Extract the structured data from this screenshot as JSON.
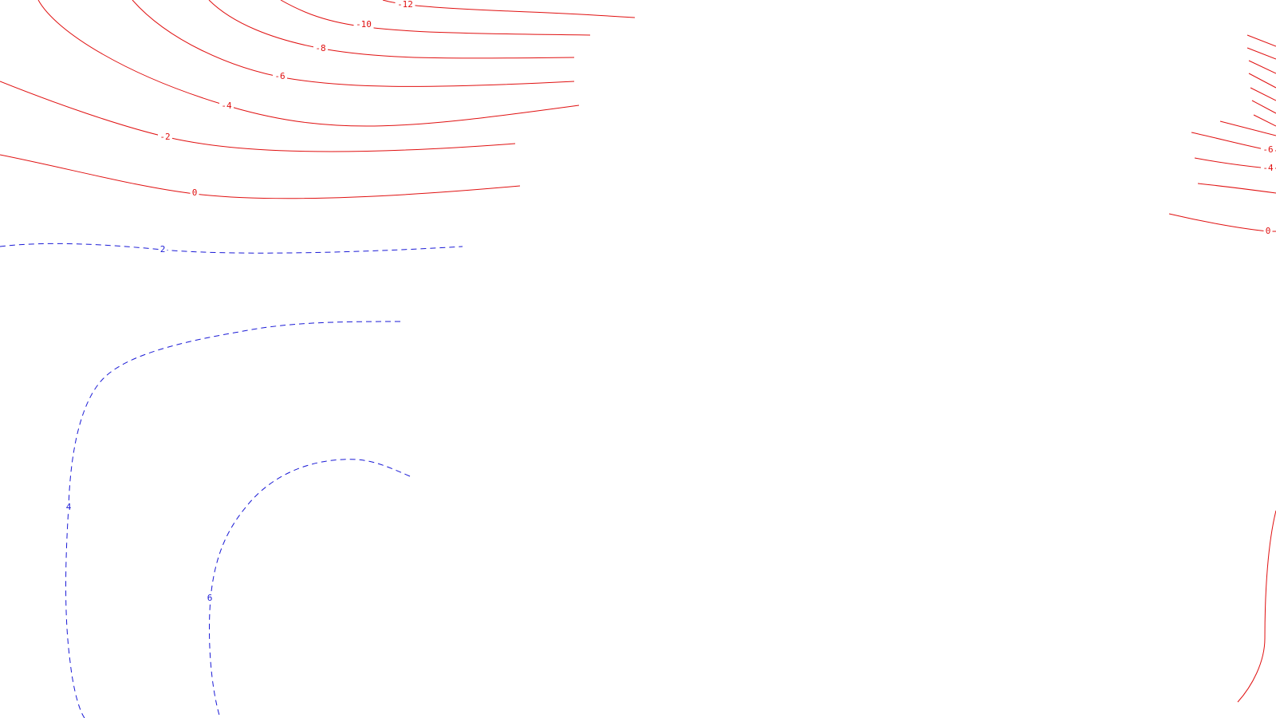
{
  "colors": {
    "negative": "#e01010",
    "positive": "#1a1ad6",
    "background": "#ffffff"
  },
  "contours": [
    {
      "id": "neg-12-a",
      "level": -12,
      "label": "-12"
    },
    {
      "id": "neg-10-a",
      "level": -10,
      "label": "-10"
    },
    {
      "id": "neg-8-a",
      "level": -8,
      "label": "-8"
    },
    {
      "id": "neg-6-a",
      "level": -6,
      "label": "-6"
    },
    {
      "id": "neg-4-a",
      "level": -4,
      "label": "-4"
    },
    {
      "id": "neg-2-a",
      "level": -2,
      "label": "-2"
    },
    {
      "id": "zero-a",
      "level": 0,
      "label": "0"
    },
    {
      "id": "pos-2-a",
      "level": 2,
      "label": "2"
    },
    {
      "id": "pos-4-a",
      "level": 4,
      "label": "4"
    },
    {
      "id": "pos-6-a",
      "level": 6,
      "label": "6"
    },
    {
      "id": "neg-6-b",
      "level": -6,
      "label": "-6"
    },
    {
      "id": "neg-4-b",
      "level": -4,
      "label": "-4"
    },
    {
      "id": "zero-b",
      "level": 0,
      "label": "0"
    }
  ]
}
